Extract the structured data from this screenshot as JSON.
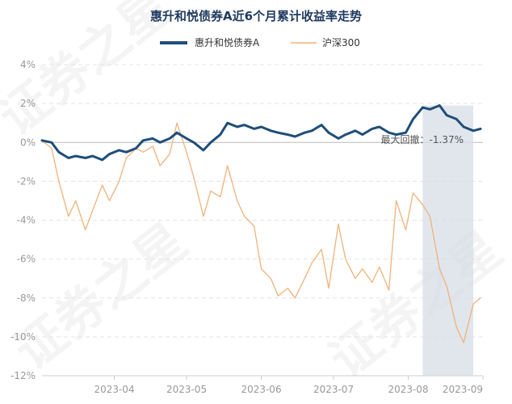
{
  "chart_data": {
    "type": "line",
    "title": "惠升和悦债券A近6个月累计收益率走势",
    "legend_position": "top-center",
    "grid": true,
    "ylim": [
      -12,
      4
    ],
    "y_ticks": [
      4,
      2,
      0,
      -2,
      -4,
      -6,
      -8,
      -10,
      -12
    ],
    "y_tick_labels": [
      "4%",
      "2%",
      "0%",
      "-2%",
      "-4%",
      "-6%",
      "-8%",
      "-10%",
      "-12%"
    ],
    "x_start": "2023-03-02",
    "x_end": "2023-09-01",
    "x_ticks": [
      "2023-04-01",
      "2023-05-01",
      "2023-06-01",
      "2023-07-01",
      "2023-08-01",
      "2023-09-01"
    ],
    "x_tick_labels": [
      "2023-04",
      "2023-05",
      "2023-06",
      "2023-07",
      "2023-08",
      "2023-09"
    ],
    "series": [
      {
        "name": "惠升和悦债券A",
        "color": "#1f4e79",
        "points": [
          [
            "2023-03-02",
            0.1
          ],
          [
            "2023-03-06",
            0.0
          ],
          [
            "2023-03-09",
            -0.5
          ],
          [
            "2023-03-13",
            -0.8
          ],
          [
            "2023-03-16",
            -0.7
          ],
          [
            "2023-03-20",
            -0.8
          ],
          [
            "2023-03-23",
            -0.7
          ],
          [
            "2023-03-27",
            -0.9
          ],
          [
            "2023-03-30",
            -0.6
          ],
          [
            "2023-04-03",
            -0.4
          ],
          [
            "2023-04-06",
            -0.5
          ],
          [
            "2023-04-10",
            -0.3
          ],
          [
            "2023-04-13",
            0.1
          ],
          [
            "2023-04-17",
            0.2
          ],
          [
            "2023-04-20",
            0.0
          ],
          [
            "2023-04-24",
            0.2
          ],
          [
            "2023-04-27",
            0.5
          ],
          [
            "2023-05-01",
            0.2
          ],
          [
            "2023-05-04",
            0.0
          ],
          [
            "2023-05-08",
            -0.4
          ],
          [
            "2023-05-11",
            0.0
          ],
          [
            "2023-05-15",
            0.4
          ],
          [
            "2023-05-18",
            1.0
          ],
          [
            "2023-05-22",
            0.8
          ],
          [
            "2023-05-25",
            0.9
          ],
          [
            "2023-05-29",
            0.7
          ],
          [
            "2023-06-01",
            0.8
          ],
          [
            "2023-06-05",
            0.6
          ],
          [
            "2023-06-08",
            0.5
          ],
          [
            "2023-06-12",
            0.4
          ],
          [
            "2023-06-15",
            0.3
          ],
          [
            "2023-06-19",
            0.5
          ],
          [
            "2023-06-22",
            0.6
          ],
          [
            "2023-06-26",
            0.9
          ],
          [
            "2023-06-29",
            0.5
          ],
          [
            "2023-07-03",
            0.2
          ],
          [
            "2023-07-06",
            0.4
          ],
          [
            "2023-07-10",
            0.6
          ],
          [
            "2023-07-13",
            0.4
          ],
          [
            "2023-07-17",
            0.7
          ],
          [
            "2023-07-20",
            0.8
          ],
          [
            "2023-07-24",
            0.5
          ],
          [
            "2023-07-27",
            0.4
          ],
          [
            "2023-07-31",
            0.5
          ],
          [
            "2023-08-03",
            1.2
          ],
          [
            "2023-08-07",
            1.8
          ],
          [
            "2023-08-10",
            1.7
          ],
          [
            "2023-08-14",
            1.9
          ],
          [
            "2023-08-17",
            1.4
          ],
          [
            "2023-08-21",
            1.2
          ],
          [
            "2023-08-24",
            0.8
          ],
          [
            "2023-08-28",
            0.6
          ],
          [
            "2023-08-31",
            0.7
          ]
        ]
      },
      {
        "name": "沪深300",
        "color": "#f0b27a",
        "points": [
          [
            "2023-03-02",
            0.1
          ],
          [
            "2023-03-06",
            -0.3
          ],
          [
            "2023-03-09",
            -2.0
          ],
          [
            "2023-03-13",
            -3.8
          ],
          [
            "2023-03-16",
            -3.0
          ],
          [
            "2023-03-20",
            -4.5
          ],
          [
            "2023-03-23",
            -3.5
          ],
          [
            "2023-03-27",
            -2.2
          ],
          [
            "2023-03-30",
            -3.0
          ],
          [
            "2023-04-03",
            -2.0
          ],
          [
            "2023-04-06",
            -0.8
          ],
          [
            "2023-04-10",
            -0.3
          ],
          [
            "2023-04-13",
            -0.5
          ],
          [
            "2023-04-17",
            -0.2
          ],
          [
            "2023-04-20",
            -1.2
          ],
          [
            "2023-04-24",
            -0.6
          ],
          [
            "2023-04-27",
            1.0
          ],
          [
            "2023-05-01",
            -0.5
          ],
          [
            "2023-05-04",
            -1.8
          ],
          [
            "2023-05-08",
            -3.8
          ],
          [
            "2023-05-11",
            -2.5
          ],
          [
            "2023-05-15",
            -2.8
          ],
          [
            "2023-05-18",
            -1.2
          ],
          [
            "2023-05-22",
            -3.0
          ],
          [
            "2023-05-25",
            -3.8
          ],
          [
            "2023-05-29",
            -4.3
          ],
          [
            "2023-06-01",
            -6.5
          ],
          [
            "2023-06-05",
            -7.0
          ],
          [
            "2023-06-08",
            -7.9
          ],
          [
            "2023-06-12",
            -7.5
          ],
          [
            "2023-06-15",
            -8.0
          ],
          [
            "2023-06-19",
            -7.0
          ],
          [
            "2023-06-22",
            -6.2
          ],
          [
            "2023-06-26",
            -5.5
          ],
          [
            "2023-06-29",
            -7.5
          ],
          [
            "2023-07-03",
            -4.2
          ],
          [
            "2023-07-06",
            -6.0
          ],
          [
            "2023-07-10",
            -7.0
          ],
          [
            "2023-07-13",
            -6.5
          ],
          [
            "2023-07-17",
            -7.2
          ],
          [
            "2023-07-20",
            -6.4
          ],
          [
            "2023-07-24",
            -7.6
          ],
          [
            "2023-07-27",
            -3.0
          ],
          [
            "2023-07-31",
            -4.5
          ],
          [
            "2023-08-03",
            -2.6
          ],
          [
            "2023-08-07",
            -3.2
          ],
          [
            "2023-08-10",
            -3.8
          ],
          [
            "2023-08-14",
            -6.5
          ],
          [
            "2023-08-17",
            -7.4
          ],
          [
            "2023-08-21",
            -9.5
          ],
          [
            "2023-08-24",
            -10.3
          ],
          [
            "2023-08-28",
            -8.3
          ],
          [
            "2023-08-31",
            -8.0
          ]
        ]
      }
    ],
    "drawdown_region": {
      "start": "2023-08-07",
      "end": "2023-08-28"
    },
    "annotation": {
      "text": "最大回撤：-1.37%"
    }
  },
  "watermark": {
    "text": "证券之星",
    "color": "#000000"
  }
}
